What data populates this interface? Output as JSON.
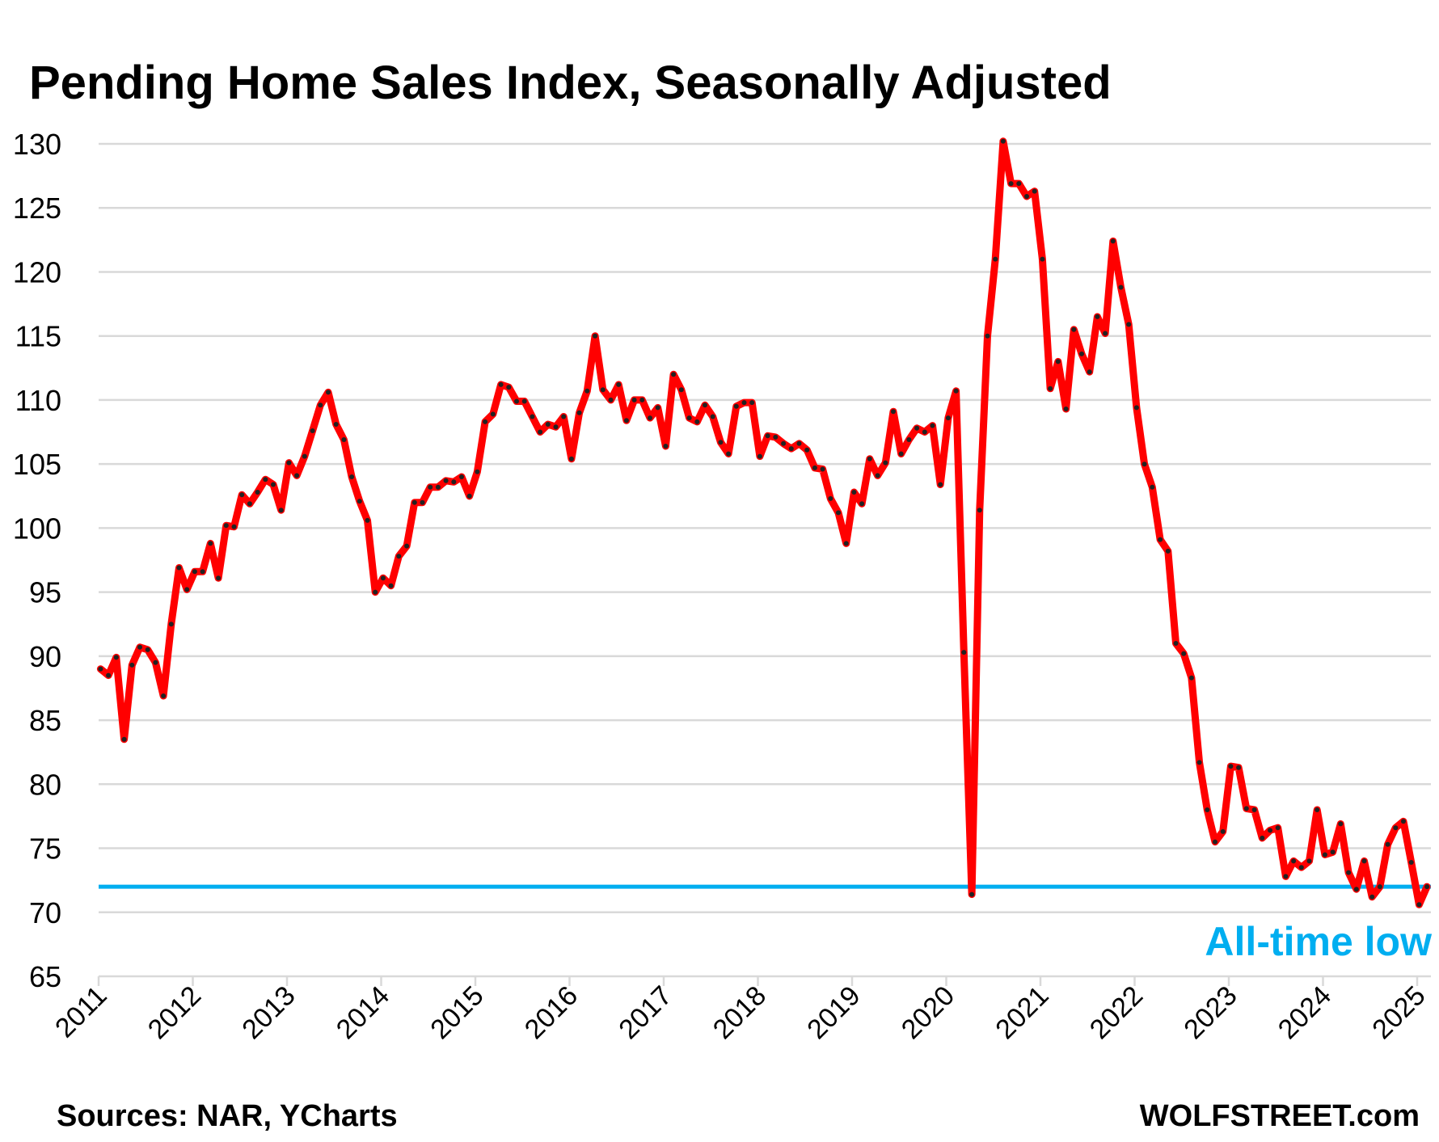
{
  "chart_data": {
    "type": "line",
    "title": "Pending Home Sales Index, Seasonally Adjusted",
    "xlabel": "",
    "ylabel": "",
    "ylim": [
      65,
      130
    ],
    "yticks": [
      65,
      70,
      75,
      80,
      85,
      90,
      95,
      100,
      105,
      110,
      115,
      120,
      125,
      130
    ],
    "xlim": [
      2011,
      2025.15
    ],
    "xticks": [
      "2011",
      "2012",
      "2013",
      "2014",
      "2015",
      "2016",
      "2017",
      "2018",
      "2019",
      "2020",
      "2021",
      "2022",
      "2023",
      "2024",
      "2025"
    ],
    "grid": true,
    "series": [
      {
        "name": "Pending Home Sales Index",
        "color": "#ff0000",
        "marker_color": "#222222",
        "start_year": 2011,
        "points_per_year": 12,
        "values": [
          89.0,
          88.5,
          89.9,
          83.5,
          89.3,
          90.7,
          90.5,
          89.5,
          86.9,
          92.5,
          96.9,
          95.2,
          96.6,
          96.6,
          98.8,
          96.1,
          100.2,
          100.1,
          102.6,
          101.9,
          102.8,
          103.8,
          103.4,
          101.4,
          105.1,
          104.1,
          105.6,
          107.6,
          109.6,
          110.6,
          108.1,
          106.9,
          104.0,
          102.1,
          100.6,
          95.0,
          96.1,
          95.5,
          97.8,
          98.6,
          102.0,
          102.0,
          103.2,
          103.2,
          103.7,
          103.6,
          104.0,
          102.5,
          104.4,
          108.3,
          108.9,
          111.2,
          111.0,
          109.9,
          109.9,
          108.7,
          107.5,
          108.1,
          107.9,
          108.7,
          105.4,
          109.0,
          110.7,
          115.0,
          110.8,
          110.0,
          111.2,
          108.4,
          110.0,
          110.0,
          108.6,
          109.4,
          106.4,
          112.0,
          110.8,
          108.6,
          108.3,
          109.6,
          108.7,
          106.7,
          105.8,
          109.5,
          109.8,
          109.8,
          105.6,
          107.2,
          107.1,
          106.6,
          106.2,
          106.6,
          106.1,
          104.7,
          104.6,
          102.3,
          101.2,
          98.8,
          102.8,
          101.9,
          105.4,
          104.1,
          105.1,
          109.1,
          105.8,
          106.9,
          107.8,
          107.5,
          108.0,
          103.4,
          108.6,
          110.7,
          90.3,
          71.4,
          101.4,
          115.0,
          121.0,
          130.2,
          126.9,
          126.9,
          125.9,
          126.3,
          121.0,
          110.9,
          113.0,
          109.3,
          115.5,
          113.6,
          112.2,
          116.5,
          115.2,
          122.4,
          118.8,
          115.9,
          109.4,
          105.0,
          103.2,
          99.1,
          98.2,
          91.0,
          90.2,
          88.3,
          81.7,
          78.0,
          75.5,
          76.3,
          81.4,
          81.3,
          78.1,
          78.0,
          75.8,
          76.4,
          76.6,
          72.8,
          74.0,
          73.5,
          74.0,
          78.0,
          74.5,
          74.7,
          76.9,
          73.1,
          71.8,
          74.0,
          71.2,
          72.0,
          75.3,
          76.6,
          77.1,
          73.9,
          70.6,
          72.0
        ]
      }
    ],
    "reference_line": {
      "value": 72.0,
      "label": "All-time low",
      "color": "#00aef0"
    },
    "sources_note": "Sources: NAR, YCharts",
    "brand": "WOLFSTREET.com"
  }
}
